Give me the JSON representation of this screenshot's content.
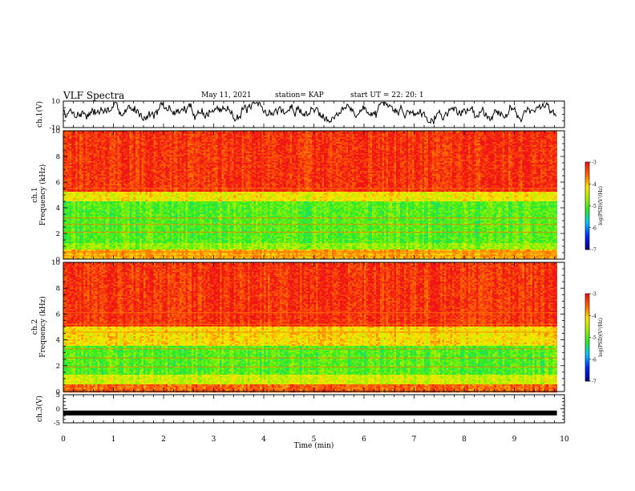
{
  "header": {
    "title": "VLF Spectra",
    "date": "May 11, 2021",
    "station": "station= KAP",
    "start": "start  UT  =   22: 20: 1"
  },
  "chart_data": [
    {
      "type": "line",
      "panel": "ch1-waveform",
      "ylabel": "ch.1(V)",
      "ylim": [
        -10,
        10
      ],
      "y_ticks": [
        "10",
        "-10"
      ],
      "xlim": [
        0,
        10
      ],
      "data_end_min": 9.85,
      "trace_mean": 2.5,
      "trace_range": [
        -7.5,
        9
      ]
    },
    {
      "type": "heatmap",
      "panel": "ch1-spectrogram",
      "ylabel_lines": [
        "ch.1",
        "Frequency  (kHz)"
      ],
      "ylim": [
        0,
        10
      ],
      "y_ticks": [
        "0",
        "2",
        "4",
        "6",
        "8",
        "10"
      ],
      "xlim": [
        0,
        10
      ],
      "data_end_min": 9.85,
      "colorbar": {
        "label": "log(PSD)(V²/Hz)",
        "range": [
          -7,
          -3
        ],
        "ticks": [
          "-3",
          "-4",
          "-5",
          "-6",
          "-7"
        ]
      },
      "bands": [
        {
          "from_khz": 0,
          "to_khz": 0.7,
          "log_psd": -3.9
        },
        {
          "from_khz": 0.7,
          "to_khz": 1.2,
          "log_psd": -4.7
        },
        {
          "from_khz": 1.2,
          "to_khz": 4.5,
          "log_psd": -5.0
        },
        {
          "from_khz": 4.5,
          "to_khz": 5.2,
          "log_psd": -4.2
        },
        {
          "from_khz": 5.2,
          "to_khz": 10,
          "log_psd": -3.2
        }
      ],
      "lines_khz": [
        0.25,
        0.5,
        0.6,
        2.1,
        2.7,
        3.2,
        5.5
      ]
    },
    {
      "type": "heatmap",
      "panel": "ch2-spectrogram",
      "ylabel_lines": [
        "ch.2",
        "Frequency  (kHz)"
      ],
      "ylim": [
        0,
        10
      ],
      "y_ticks": [
        "0",
        "2",
        "4",
        "6",
        "8",
        "10"
      ],
      "xlim": [
        0,
        10
      ],
      "data_end_min": 9.85,
      "colorbar": {
        "label": "log(PSD)(V²/Hz)",
        "range": [
          -7,
          -3
        ],
        "ticks": [
          "-3",
          "-4",
          "-5",
          "-6",
          "-7"
        ]
      },
      "bands": [
        {
          "from_khz": 0,
          "to_khz": 0.5,
          "log_psd": -3.5
        },
        {
          "from_khz": 0.5,
          "to_khz": 1.3,
          "log_psd": -4.4
        },
        {
          "from_khz": 1.3,
          "to_khz": 3.6,
          "log_psd": -5.0
        },
        {
          "from_khz": 3.6,
          "to_khz": 5.0,
          "log_psd": -4.1
        },
        {
          "from_khz": 5.0,
          "to_khz": 10,
          "log_psd": -3.2
        }
      ],
      "lines_khz": [
        1.9,
        2.6,
        3.3,
        4.6,
        5.2,
        6.1
      ]
    },
    {
      "type": "line",
      "panel": "ch3-waveform",
      "ylabel": "ch.3(V)",
      "ylim": [
        -5,
        5
      ],
      "y_ticks": [
        "5",
        "0",
        "-5"
      ],
      "xlim": [
        0,
        10
      ],
      "data_end_min": 9.85,
      "trace_level": -1.5
    }
  ],
  "x_axis": {
    "label": "Time  (min)",
    "ticks": [
      "0",
      "1",
      "2",
      "3",
      "4",
      "5",
      "6",
      "7",
      "8",
      "9",
      "10"
    ]
  }
}
